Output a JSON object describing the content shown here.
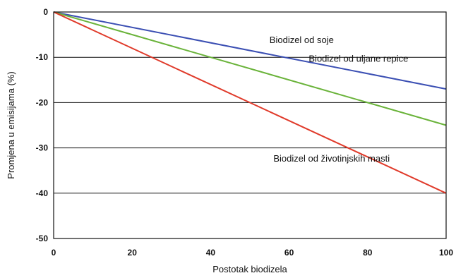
{
  "chart_data": {
    "type": "line",
    "xlabel": "Postotak biodizela",
    "ylabel": "Promjena u emisijama (%)",
    "xlim": [
      0,
      100
    ],
    "ylim": [
      -50,
      0
    ],
    "x_ticks": [
      0,
      20,
      40,
      60,
      80,
      100
    ],
    "y_ticks": [
      0,
      -10,
      -20,
      -30,
      -40,
      -50
    ],
    "grid": "horizontal",
    "series": [
      {
        "name": "Biodizel od soje",
        "x": [
          0,
          100
        ],
        "values": [
          0,
          -17
        ],
        "color": "#3b4fb3"
      },
      {
        "name": "Biodizel od uljane repice",
        "x": [
          0,
          100
        ],
        "values": [
          0,
          -25
        ],
        "color": "#6ab33a"
      },
      {
        "name": "Biodizel od životinjskih masti",
        "x": [
          0,
          100
        ],
        "values": [
          0,
          -40
        ],
        "color": "#e03a2a"
      }
    ]
  }
}
